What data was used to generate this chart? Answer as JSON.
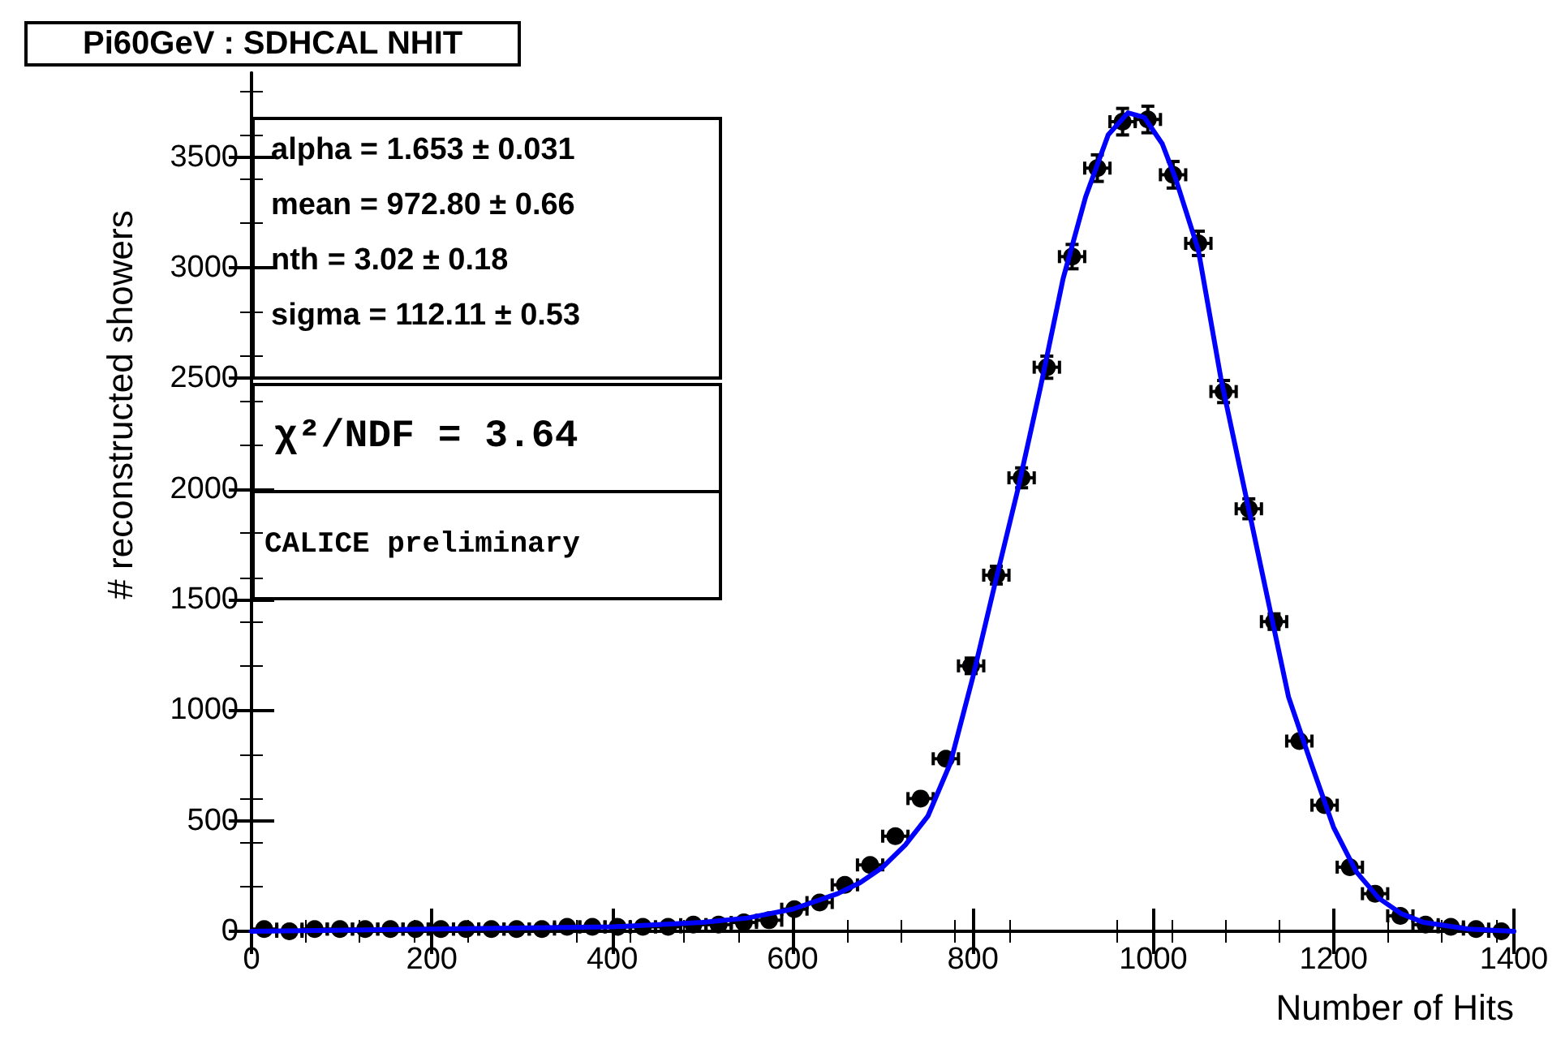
{
  "chart_data": {
    "type": "scatter",
    "title": "Pi60GeV : SDHCAL NHIT",
    "xlabel": "Number of Hits",
    "ylabel": "# reconstructed showers",
    "annotations": [
      "alpha =  1.653 ± 0.031",
      "mean =  972.80 ± 0.66",
      "nth =  3.02 ± 0.18",
      "sigma =  112.11 ± 0.53",
      "χ²/NDF =  3.64",
      "CALICE preliminary"
    ],
    "xlim": [
      0,
      1400
    ],
    "xticks": [
      0,
      200,
      400,
      600,
      800,
      1000,
      1200,
      1400
    ],
    "ylim": [
      0,
      3880
    ],
    "yticks": [
      0,
      500,
      1000,
      1500,
      2000,
      2500,
      3000,
      3500
    ],
    "grid": false,
    "marker": "circle",
    "series": [
      {
        "color": "#000000",
        "x": [
          14,
          42,
          70,
          98,
          126,
          154,
          182,
          210,
          238,
          266,
          294,
          322,
          350,
          378,
          406,
          434,
          462,
          490,
          518,
          546,
          574,
          602,
          630,
          658,
          686,
          714,
          742,
          770,
          798,
          826,
          854,
          882,
          910,
          938,
          966,
          994,
          1022,
          1050,
          1078,
          1106,
          1134,
          1162,
          1190,
          1218,
          1246,
          1274,
          1302,
          1330,
          1358,
          1386
        ],
        "values": [
          10,
          0,
          10,
          10,
          10,
          10,
          10,
          10,
          10,
          10,
          10,
          10,
          20,
          20,
          20,
          20,
          20,
          30,
          30,
          40,
          50,
          100,
          130,
          210,
          300,
          430,
          600,
          780,
          1200,
          1610,
          2050,
          2550,
          3050,
          3450,
          3660,
          3670,
          3420,
          3110,
          2440,
          1910,
          1400,
          860,
          570,
          290,
          170,
          70,
          30,
          20,
          10,
          0
        ],
        "errors": [
          null,
          null,
          null,
          null,
          null,
          null,
          null,
          null,
          null,
          null,
          null,
          null,
          null,
          null,
          null,
          null,
          null,
          null,
          null,
          null,
          null,
          null,
          null,
          null,
          null,
          null,
          null,
          null,
          35,
          40,
          45,
          50,
          55,
          60,
          60,
          60,
          60,
          55,
          50,
          45,
          35,
          null,
          null,
          null,
          null,
          null,
          null,
          null,
          null,
          null
        ],
        "xerrors": [
          14,
          14,
          14,
          14,
          14,
          14,
          14,
          14,
          14,
          14,
          14,
          14,
          14,
          14,
          14,
          14,
          14,
          14,
          14,
          14,
          14,
          14,
          14,
          14,
          14,
          14,
          14,
          14,
          14,
          14,
          14,
          14,
          14,
          14,
          14,
          14,
          14,
          14,
          14,
          14,
          14,
          14,
          14,
          14,
          14,
          14,
          14,
          14,
          14,
          14
        ]
      },
      {
        "type": "line",
        "color": "#0000ff",
        "marker": "none",
        "line_style": "solid",
        "x": [
          0,
          200,
          400,
          500,
          550,
          600,
          650,
          675,
          700,
          725,
          750,
          775,
          800,
          825,
          850,
          875,
          900,
          925,
          950,
          972,
          990,
          1010,
          1025,
          1050,
          1075,
          1100,
          1125,
          1150,
          1175,
          1200,
          1225,
          1250,
          1275,
          1300,
          1350,
          1400
        ],
        "values": [
          0,
          10,
          20,
          40,
          60,
          100,
          170,
          220,
          290,
          390,
          520,
          760,
          1150,
          1580,
          2000,
          2460,
          2950,
          3320,
          3600,
          3700,
          3680,
          3560,
          3400,
          3080,
          2500,
          2020,
          1540,
          1060,
          760,
          470,
          270,
          150,
          80,
          40,
          10,
          0
        ]
      }
    ]
  }
}
